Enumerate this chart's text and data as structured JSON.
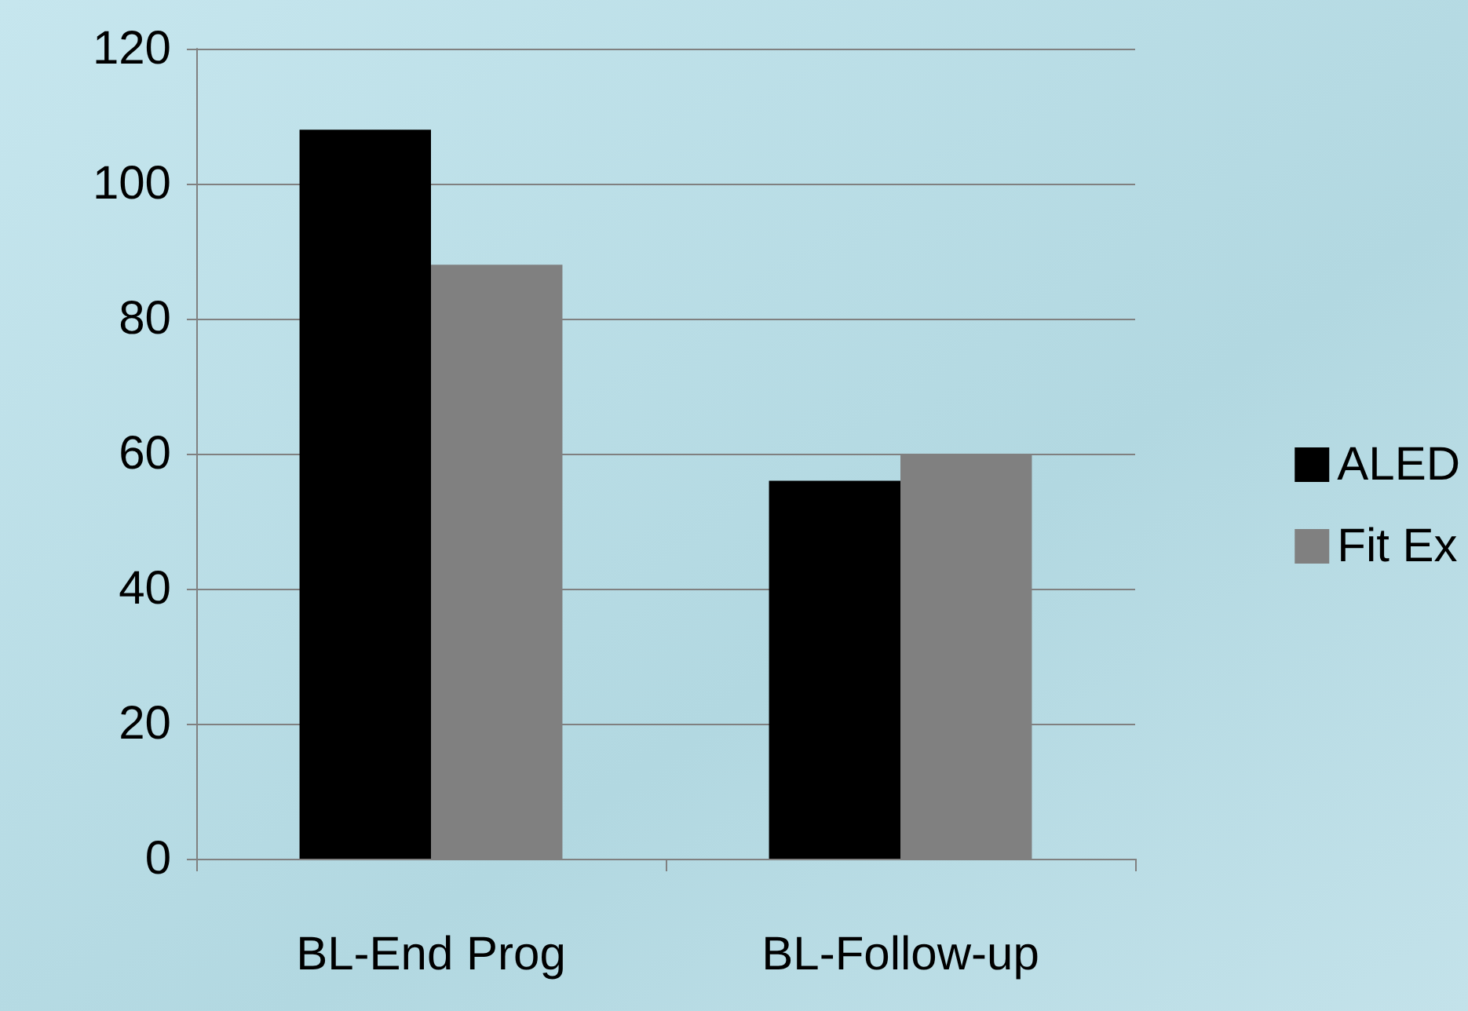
{
  "chart_data": {
    "type": "bar",
    "categories": [
      "BL-End Prog",
      "BL-Follow-up"
    ],
    "series": [
      {
        "name": "ALED",
        "color": "#000000",
        "values": [
          108,
          56
        ]
      },
      {
        "name": "Fit Ex",
        "color": "#808080",
        "values": [
          88,
          60
        ]
      }
    ],
    "ylim": [
      0,
      120
    ],
    "yticks": [
      0,
      20,
      40,
      60,
      80,
      100,
      120
    ],
    "grid": "y",
    "legend": "right"
  }
}
